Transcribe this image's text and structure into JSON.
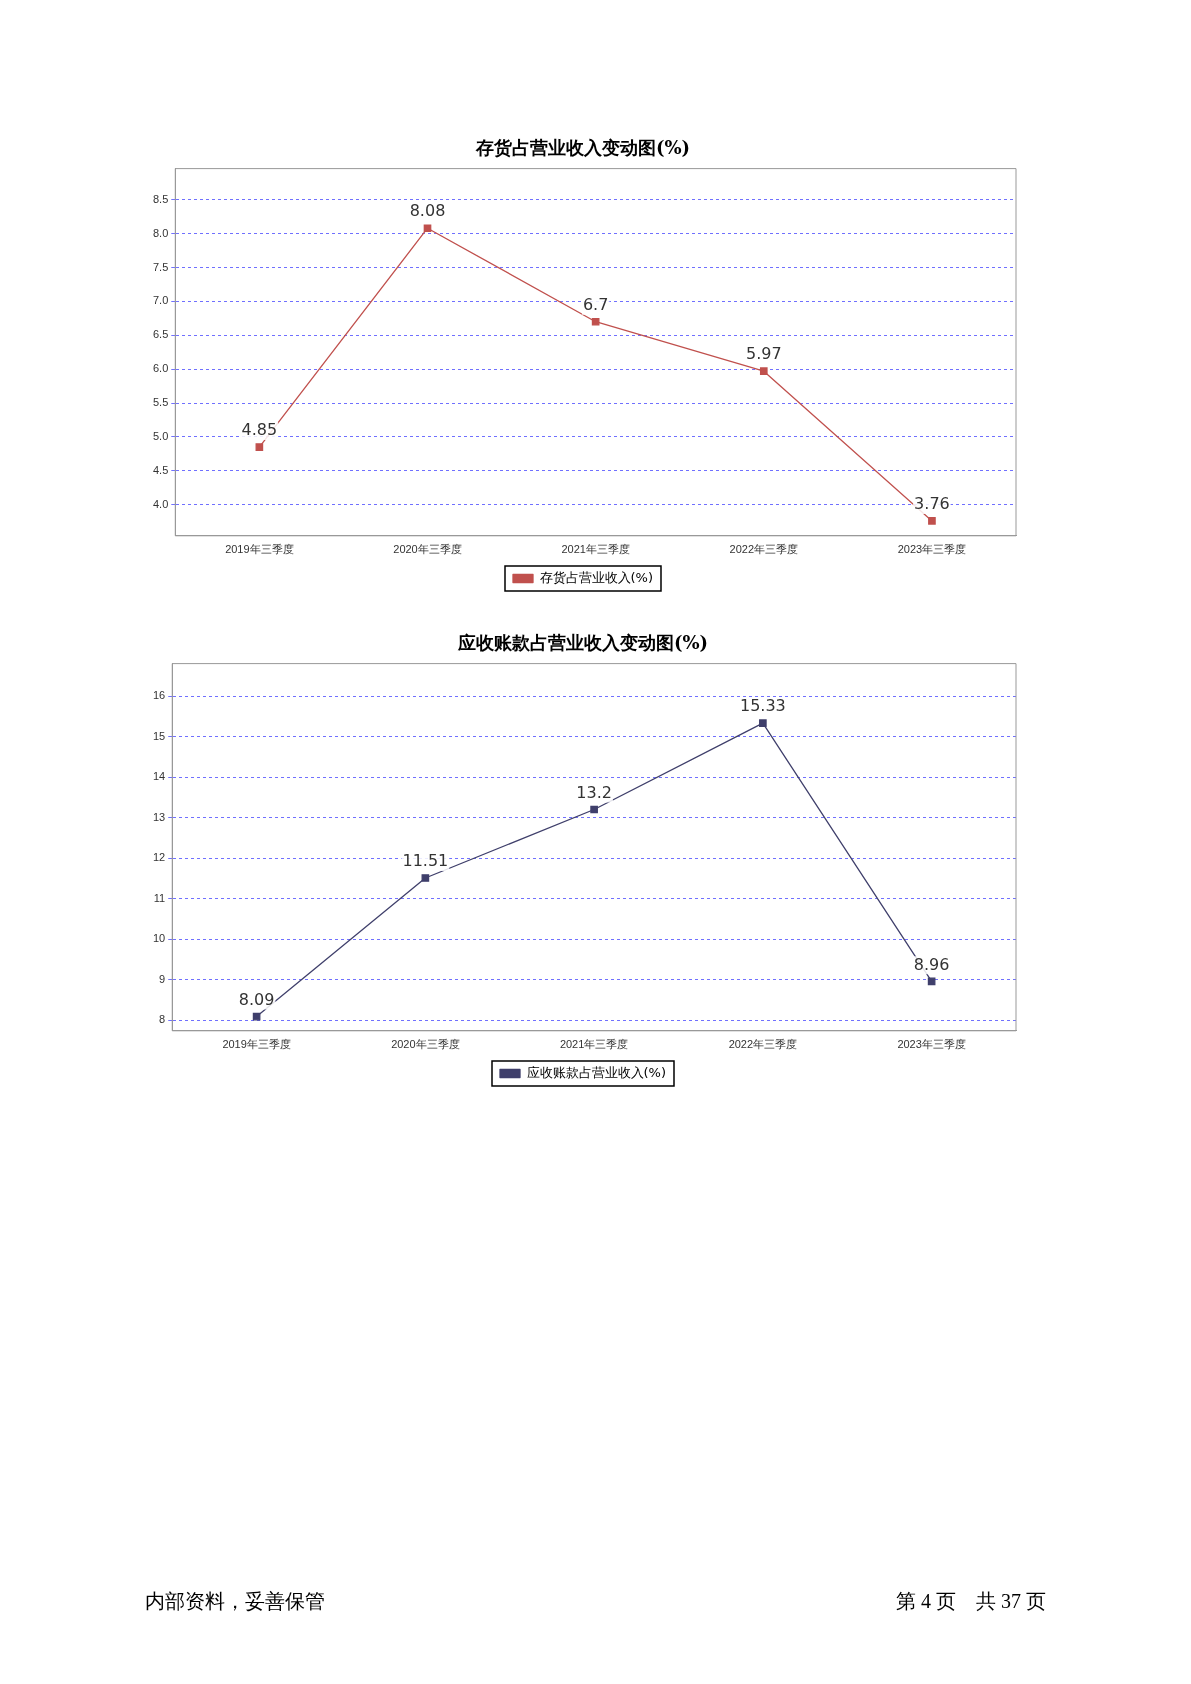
{
  "chart_data": [
    {
      "type": "line",
      "title": "存货占营业收入变动图(%)",
      "categories": [
        "2019年三季度",
        "2020年三季度",
        "2021年三季度",
        "2022年三季度",
        "2023年三季度"
      ],
      "series": [
        {
          "name": "存货占营业收入(%)",
          "color": "#c0504d",
          "values": [
            4.85,
            8.08,
            6.7,
            5.97,
            3.76
          ]
        }
      ],
      "ylim": [
        3.54,
        8.96
      ],
      "yticks": [
        {
          "value": 4,
          "label": "4.0"
        },
        4.5,
        {
          "value": 5,
          "label": "5.0"
        },
        5.5,
        {
          "value": 6,
          "label": "6.0"
        },
        6.5,
        {
          "value": 7,
          "label": "7.0"
        },
        7.5,
        {
          "value": 8,
          "label": "8.0"
        },
        8.5
      ],
      "grid": "y",
      "legend": "bottom",
      "marker": "square",
      "data_labels": true
    },
    {
      "type": "line",
      "title": "应收账款占营业收入变动图(%)",
      "categories": [
        "2019年三季度",
        "2020年三季度",
        "2021年三季度",
        "2022年三季度",
        "2023年三季度"
      ],
      "series": [
        {
          "name": "应收账款占营业收入(%)",
          "color": "#3f3f6b",
          "values": [
            8.09,
            11.51,
            13.2,
            15.33,
            8.96
          ]
        }
      ],
      "ylim": [
        7.74,
        16.8
      ],
      "yticks": [
        8,
        9,
        10,
        11,
        12,
        13,
        14,
        15,
        16
      ],
      "grid": "y",
      "legend": "bottom",
      "marker": "square",
      "data_labels": true,
      "annotations": [
        "内部资料，妥善保管",
        "第 4 页　共 37 页"
      ]
    }
  ]
}
